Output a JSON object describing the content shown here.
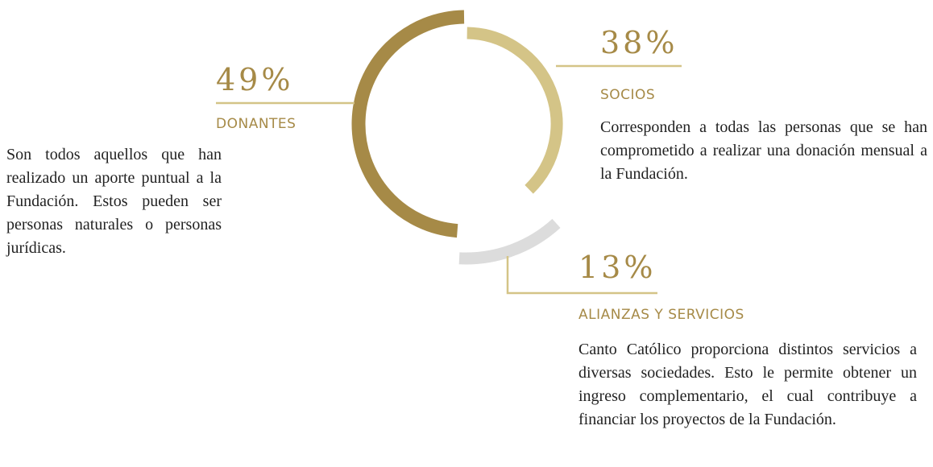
{
  "chart_data": {
    "type": "donut",
    "categories": [
      "DONANTES",
      "SOCIOS",
      "ALIANZAS Y SERVICIOS"
    ],
    "values": [
      49,
      38,
      13
    ],
    "value_labels": [
      "49%",
      "38%",
      "13%"
    ],
    "colors": [
      "#a68a47",
      "#d4c487",
      "#dcdcdc"
    ],
    "descriptions": [
      "Son todos aquellos que han realizado un aporte puntual a la Fundación. Estos pueden ser personas naturales o personas jurídicas.",
      "Corresponden a todas las personas que se han comprometido a realizar una donación mensual a la Fundación.",
      "Canto Católico proporciona distintos servicios a diversas sociedades. Esto le permite obtener un ingreso complementario, el cual contribuye a financiar los proyectos de la Fundación."
    ]
  }
}
